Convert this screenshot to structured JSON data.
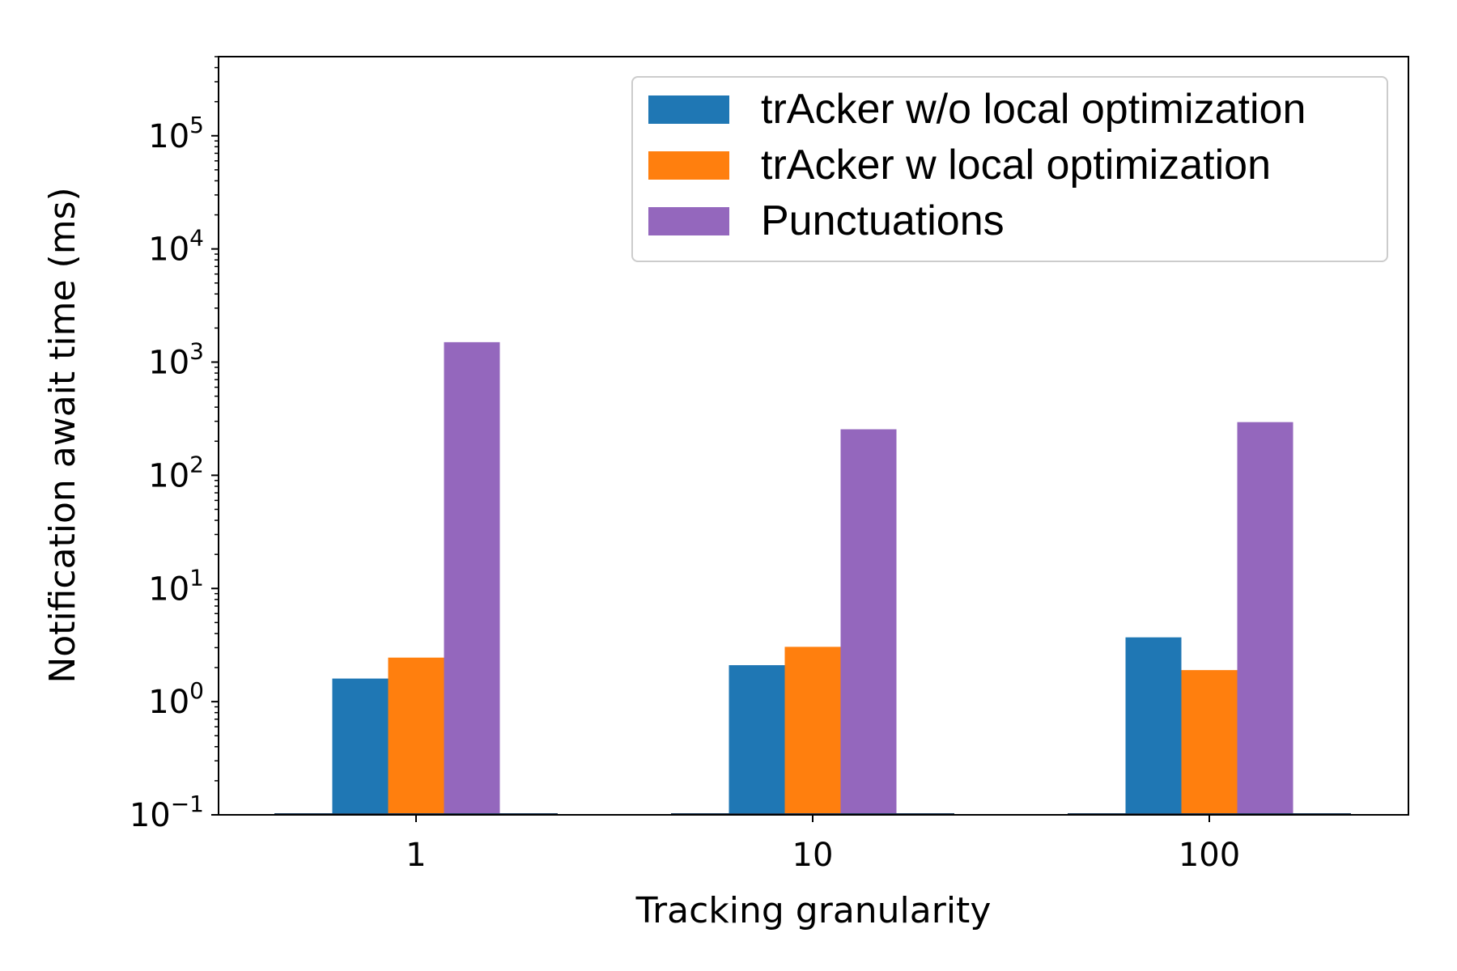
{
  "chart_data": {
    "type": "bar",
    "title": "",
    "xlabel": "Tracking granularity",
    "ylabel": "Notification await time (ms)",
    "yscale": "log",
    "ylim": [
      0.1,
      500000
    ],
    "yticks": [
      {
        "exp": -1,
        "base": "10",
        "sup": "−1"
      },
      {
        "exp": 0,
        "base": "10",
        "sup": "0"
      },
      {
        "exp": 1,
        "base": "10",
        "sup": "1"
      },
      {
        "exp": 2,
        "base": "10",
        "sup": "2"
      },
      {
        "exp": 3,
        "base": "10",
        "sup": "3"
      },
      {
        "exp": 4,
        "base": "10",
        "sup": "4"
      },
      {
        "exp": 5,
        "base": "10",
        "sup": "5"
      }
    ],
    "categories": [
      "1",
      "10",
      "100"
    ],
    "series": [
      {
        "name": "trAcker w/o local optimization",
        "color": "#1f77b4",
        "values": [
          1.6,
          2.1,
          3.7
        ]
      },
      {
        "name": "trAcker w local optimization",
        "color": "#ff7f0e",
        "values": [
          2.45,
          3.05,
          1.9
        ]
      },
      {
        "name": "Punctuations",
        "color": "#9467bd",
        "values": [
          1500,
          255,
          295
        ]
      }
    ],
    "grid": false,
    "legend_position": "top-right"
  }
}
